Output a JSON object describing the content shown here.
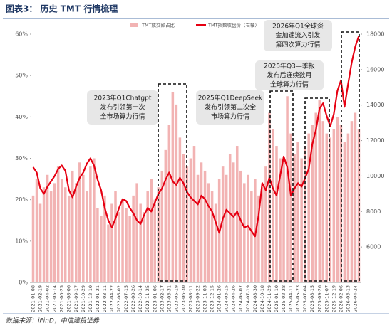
{
  "chart_data": {
    "type": "bar-line",
    "title": "图表3：  历史 TMT 行情梳理",
    "source": "数据来源：iFinD，中信建投证券",
    "categories": [
      "2021-01-08",
      null,
      "2021-02-19",
      null,
      "2021-04-02",
      null,
      "2021-05-14",
      null,
      "2021-06-25",
      null,
      "2021-08-06",
      null,
      "2021-09-17",
      null,
      "2021-10-29",
      null,
      "2021-12-10",
      null,
      "2022-01-21",
      null,
      "2022-03-11",
      null,
      "2022-04-22",
      null,
      "2022-06-02",
      null,
      "2022-07-15",
      null,
      "2022-08-26",
      null,
      "2022-10-14",
      null,
      "2022-11-25",
      null,
      "2023-01-06",
      null,
      "2023-02-17",
      null,
      "2023-03-31",
      null,
      "2023-05-19",
      null,
      "2023-06-30",
      null,
      "2023-08-11",
      null,
      "2023-09-22",
      null,
      "2023-11-03",
      null,
      "2023-12-15",
      null,
      "2024-01-26",
      null,
      "2024-03-15",
      null,
      "2024-04-26",
      null,
      "2024-06-07",
      null,
      "2024-07-19",
      null,
      "2024-08-30",
      null,
      "2024-10-18",
      null,
      "2024-11-29",
      null,
      "2025-01-10",
      null,
      "2025-02-28",
      null,
      "2025-04-11",
      null,
      "2025-05-23",
      null,
      "2025-07-04",
      null,
      "2025-08-15",
      null,
      "2025-09-26",
      null,
      "2025-11-07",
      null,
      "2025-12-19",
      null,
      "2026-02-06",
      null,
      "2026-03-13",
      null,
      "2026-04-24",
      null
    ],
    "series": [
      {
        "name": "TMT成交额占比",
        "type": "bar",
        "color": "#f2b3b3",
        "values": [
          21,
          25,
          19,
          23,
          26,
          22,
          24,
          28,
          25,
          23,
          21,
          27,
          24,
          29,
          26,
          22,
          28,
          30,
          18,
          16,
          21,
          14,
          19,
          22,
          17,
          20,
          18,
          16,
          21,
          24,
          19,
          17,
          22,
          25,
          20,
          23,
          27,
          32,
          38,
          46,
          43,
          35,
          31,
          28,
          30,
          33,
          26,
          29,
          27,
          24,
          22,
          19,
          25,
          28,
          26,
          31,
          29,
          33,
          27,
          24,
          26,
          22,
          25,
          21,
          23,
          28,
          41,
          37,
          33,
          30,
          29,
          45,
          36,
          31,
          34,
          30,
          33,
          36,
          38,
          41,
          44,
          39,
          36,
          35,
          37,
          40,
          38,
          34,
          36,
          39,
          41,
          37
        ]
      },
      {
        "name": "TMT指数收盘价（右轴）",
        "type": "line",
        "axis": "y2",
        "color": "#e60012",
        "values": [
          10500,
          10200,
          9300,
          9000,
          9400,
          9700,
          10000,
          10400,
          10600,
          10300,
          9200,
          8800,
          9400,
          9900,
          10200,
          10700,
          11000,
          10600,
          9800,
          9200,
          8200,
          7500,
          7100,
          7600,
          8200,
          8700,
          8600,
          8200,
          7900,
          7500,
          7300,
          7800,
          8200,
          8000,
          8500,
          9000,
          9300,
          9800,
          10200,
          9700,
          9500,
          9900,
          9600,
          9100,
          8800,
          8600,
          8400,
          8900,
          8700,
          8300,
          8000,
          7400,
          6800,
          7600,
          8100,
          7900,
          7700,
          8000,
          7500,
          7100,
          7200,
          6900,
          6600,
          7800,
          9600,
          9200,
          9900,
          9300,
          8900,
          10000,
          11100,
          10500,
          8900,
          9300,
          9600,
          9400,
          9900,
          10400,
          11800,
          12600,
          13800,
          14100,
          13400,
          12800,
          13500,
          14800,
          15400,
          13900,
          15200,
          16400,
          17300,
          17900
        ]
      }
    ],
    "ylim": [
      0,
      60
    ],
    "yticks": [
      {
        "value": 0,
        "label": "0%"
      },
      {
        "value": 10,
        "label": "10%"
      },
      {
        "value": 20,
        "label": "20%"
      },
      {
        "value": 30,
        "label": "30%"
      },
      {
        "value": 40,
        "label": "40%"
      },
      {
        "value": 50,
        "label": "50%"
      },
      {
        "value": 60,
        "label": "60%"
      }
    ],
    "y2lim": [
      4000,
      18000
    ],
    "y2ticks": [
      6000,
      8000,
      10000,
      12000,
      14000,
      16000,
      18000
    ],
    "annotations": [
      [
        "2023年Q1Chatgpt",
        "发布引领第一次",
        "全市场算力行情"
      ],
      [
        "2025年Q1DeepSeek",
        "发布引领第二次全",
        "市场算力行情"
      ],
      [
        "2025年Q3—季报",
        "发布后连续数月",
        "全球算力行情"
      ],
      [
        "2026年Q1全球资",
        "金加速流入引发",
        "第四次算力行情"
      ]
    ]
  }
}
